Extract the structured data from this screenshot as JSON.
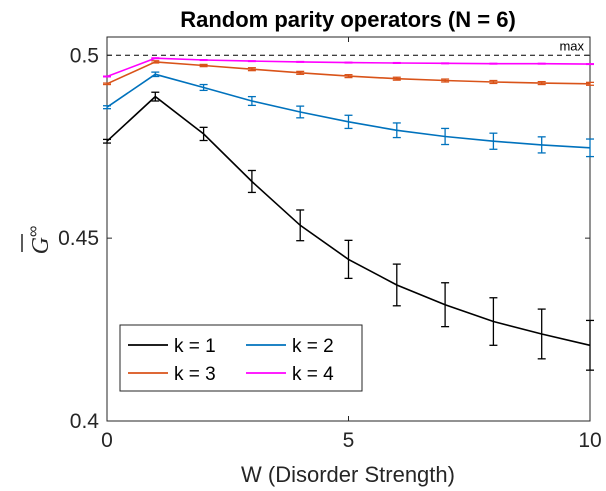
{
  "chart_data": {
    "type": "line",
    "title": "Random parity operators (N = 6)",
    "xlabel": "W (Disorder Strength)",
    "ylabel": "G",
    "ylabel_superscript": "∞",
    "xlim": [
      0,
      10
    ],
    "ylim": [
      0.4,
      0.505
    ],
    "xticks": [
      0,
      5,
      10
    ],
    "xtick_labels": [
      "0",
      "5",
      "10"
    ],
    "yticks": [
      0.4,
      0.45,
      0.5
    ],
    "ytick_labels": [
      "0.4",
      "0.45",
      "0.5"
    ],
    "grid": false,
    "legend_position": "bottom-left",
    "reference_line": {
      "y": 0.5,
      "label": "max",
      "style": "dashed",
      "color": "#000000"
    },
    "x": [
      0,
      1,
      2,
      3,
      4,
      5,
      6,
      7,
      8,
      9,
      10
    ],
    "series": [
      {
        "name": "k = 1",
        "color": "#000000",
        "values": [
          0.4765,
          0.4887,
          0.4785,
          0.4655,
          0.4535,
          0.4442,
          0.4372,
          0.4318,
          0.4272,
          0.4238,
          0.4207
        ],
        "errors": [
          0.0005,
          0.0012,
          0.0018,
          0.003,
          0.0042,
          0.0052,
          0.0057,
          0.006,
          0.0065,
          0.0068,
          0.0068
        ]
      },
      {
        "name": "k = 2",
        "color": "#0072bd",
        "values": [
          0.4858,
          0.4948,
          0.4912,
          0.4875,
          0.4845,
          0.4818,
          0.4795,
          0.4778,
          0.4765,
          0.4755,
          0.4747
        ],
        "errors": [
          0.0004,
          0.0006,
          0.0008,
          0.0012,
          0.0016,
          0.0018,
          0.002,
          0.0022,
          0.0022,
          0.0022,
          0.0024
        ]
      },
      {
        "name": "k = 3",
        "color": "#d95319",
        "values": [
          0.4922,
          0.4982,
          0.4972,
          0.4962,
          0.4952,
          0.4943,
          0.4936,
          0.4931,
          0.4927,
          0.4924,
          0.4922
        ],
        "errors": [
          0.0002,
          0.0003,
          0.0003,
          0.0004,
          0.0004,
          0.0004,
          0.0004,
          0.0004,
          0.0004,
          0.0004,
          0.0004
        ]
      },
      {
        "name": "k = 4",
        "color": "#ff00ff",
        "values": [
          0.4942,
          0.4992,
          0.4987,
          0.4984,
          0.4982,
          0.498,
          0.4979,
          0.4978,
          0.4977,
          0.4977,
          0.4976
        ],
        "errors": [
          0.0001,
          0.0001,
          0.0001,
          0.0001,
          0.0001,
          0.0001,
          0.0001,
          0.0001,
          0.0001,
          0.0001,
          0.0001
        ]
      }
    ]
  }
}
